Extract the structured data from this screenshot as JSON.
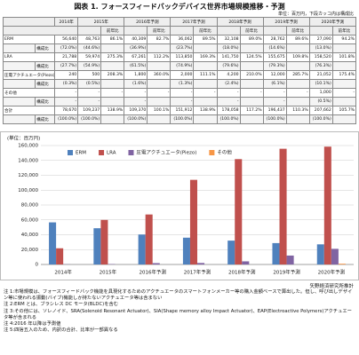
{
  "title": "図表 1. フォースフィードバックデバイス世界市場規模推移・予測",
  "unit": "単位：百万円，下段カッコ内は構成比",
  "table": {
    "years": [
      "2014年",
      "2015年",
      "2016年予測",
      "2017年予測",
      "2018年予測",
      "2019年予測",
      "2020年予測"
    ],
    "ratio_header": "前年比",
    "rows": [
      {
        "label": "ERM",
        "cells": [
          "56,640",
          "48,763",
          "86.1%",
          "40,309",
          "82.7%",
          "36,062",
          "89.5%",
          "32,108",
          "89.0%",
          "28,762",
          "89.6%",
          "27,090",
          "94.2%"
        ]
      },
      {
        "label": "構成比",
        "cells": [
          "(72.0%)",
          "(44.6%)",
          "(36.9%)",
          "(23.7%)",
          "(18.0%)",
          "(14.6%)",
          "(13.0%)"
        ]
      },
      {
        "label": "LRA",
        "cells": [
          "21,788",
          "59,974",
          "275.3%",
          "67,261",
          "112.2%",
          "113,850",
          "169.3%",
          "141,750",
          "124.5%",
          "155,675",
          "109.8%",
          "158,520",
          "101.8%"
        ]
      },
      {
        "label": "構成比",
        "cells": [
          "(27.7%)",
          "(54.9%)",
          "(61.5%)",
          "(74.9%)",
          "(79.6%)",
          "(79.3%)",
          "(76.3%)"
        ]
      },
      {
        "label": "圧電アクチュエータ(Piezo)",
        "cells": [
          "240",
          "500",
          "208.3%",
          "1,800",
          "360.0%",
          "2,000",
          "111.1%",
          "4,200",
          "210.0%",
          "12,000",
          "285.7%",
          "21,052",
          "175.4%"
        ]
      },
      {
        "label": "構成比",
        "cells": [
          "(0.3%)",
          "(0.5%)",
          "(1.6%)",
          "(1.3%)",
          "(2.4%)",
          "(6.1%)",
          "(10.1%)"
        ]
      },
      {
        "label": "その他",
        "cells": [
          "-",
          "-",
          "-",
          "-",
          "-",
          "-",
          "-",
          "-",
          "-",
          "-",
          "-",
          "1,000",
          "-"
        ]
      },
      {
        "label": "構成比",
        "cells": [
          "-",
          "-",
          "-",
          "-",
          "-",
          "-",
          "(0.5%)"
        ]
      },
      {
        "label": "合計",
        "cells": [
          "78,670",
          "109,237",
          "138.9%",
          "109,370",
          "100.1%",
          "151,912",
          "138.9%",
          "178,058",
          "117.2%",
          "196,437",
          "110.3%",
          "207,662",
          "105.7%"
        ]
      },
      {
        "label": "構成比",
        "cells": [
          "(100.0%)",
          "(100.0%)",
          "(100.0%)",
          "(100.0%)",
          "(100.0%)",
          "(100.0%)",
          "(100.0%)"
        ]
      }
    ]
  },
  "chart_data": {
    "type": "bar",
    "y_unit": "(単位：百万円)",
    "categories": [
      "2014年",
      "2015年",
      "2016年予測",
      "2017年予測",
      "2018年予測",
      "2019年予測",
      "2020年予測"
    ],
    "series": [
      {
        "name": "ERM",
        "color": "#4f81bd",
        "values": [
          56640,
          48763,
          40309,
          36062,
          32108,
          28762,
          27090
        ]
      },
      {
        "name": "LRA",
        "color": "#c0504d",
        "values": [
          21788,
          59974,
          67261,
          113850,
          141750,
          155675,
          158520
        ]
      },
      {
        "name": "圧電アクチュエータ(Piezo)",
        "color": "#8064a2",
        "values": [
          240,
          500,
          1800,
          2000,
          4200,
          12000,
          21052
        ]
      },
      {
        "name": "その他",
        "color": "#f79646",
        "values": [
          0,
          0,
          0,
          0,
          0,
          0,
          1000
        ]
      }
    ],
    "ylim": [
      0,
      160000
    ],
    "yticks": [
      0,
      {
        "value": 20000,
        "label": "20,000"
      },
      {
        "value": 40000,
        "label": "40,000"
      },
      {
        "value": 60000,
        "label": "60,000"
      },
      {
        "value": 80000,
        "label": "80,000"
      },
      {
        "value": 100000,
        "label": "100,000"
      },
      {
        "value": 120000,
        "label": "120,000"
      },
      {
        "value": 140000,
        "label": "140,000"
      },
      {
        "value": 160000,
        "label": "160,000"
      }
    ],
    "grid": true,
    "legend": "top"
  },
  "source": "矢野経済研究所推計",
  "notes": [
    "注 1:市場規模は、フォースフィードバック機能を具現化するためのアクチュエータのスマートフォンメーカー等の購入金額ベースで算出した。但し、呼び出しデザイン等に使われる振動(バイブ)機能しか持たないアクチュエータ等は含まない",
    "注 2:ERM とは、ブラシレス DC モータ(BLDC)を含む",
    "注 3:その他には、ソレノイド、SRA(Solenoid Resonant Actuator)、SIA(Shape memory alloy Impact Actuator)、EAP(Electroactive Polymers)アクチュエータ等が含まれる",
    "注 4:2016 年以降は予測値",
    "注 5:四捨五入のため、内訳の合計、比率が一部異なる"
  ]
}
